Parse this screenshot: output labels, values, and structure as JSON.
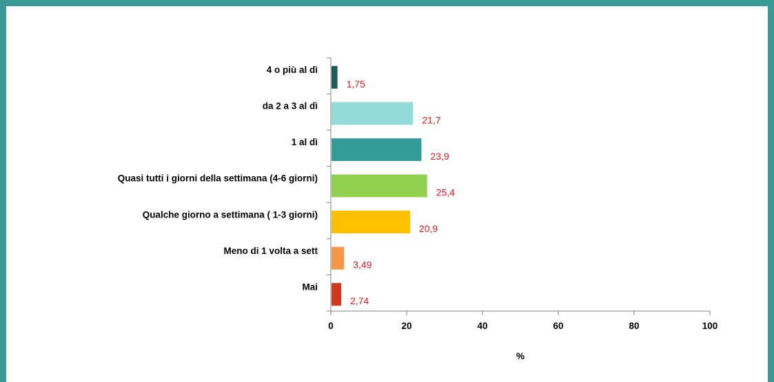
{
  "chart_data": {
    "type": "bar",
    "orientation": "horizontal",
    "categories": [
      "4 o più al dì",
      "da 2 a 3 al dì",
      "1 al dì",
      "Quasi tutti i giorni della settimana (4-6 giorni)",
      "Qualche giorno a settimana ( 1-3 giorni)",
      "Meno di 1 volta a sett",
      "Mai"
    ],
    "values": [
      1.75,
      21.7,
      23.9,
      25.4,
      20.9,
      3.49,
      2.74
    ],
    "value_labels": [
      "1,75",
      "21,7",
      "23,9",
      "25,4",
      "20,9",
      "3,49",
      "2,74"
    ],
    "bar_colors": [
      "#1f5b5b",
      "#93dbd8",
      "#339c98",
      "#92d050",
      "#ffc000",
      "#f79646",
      "#d0391e"
    ],
    "data_label_color": "#e8141b",
    "xlabel": "%",
    "ylabel": "",
    "title": "",
    "xlim": [
      0,
      100
    ],
    "xticks": [
      0,
      20,
      40,
      60,
      80,
      100
    ],
    "grid": false,
    "legend": "none"
  },
  "frame_color": "#3a9a96"
}
